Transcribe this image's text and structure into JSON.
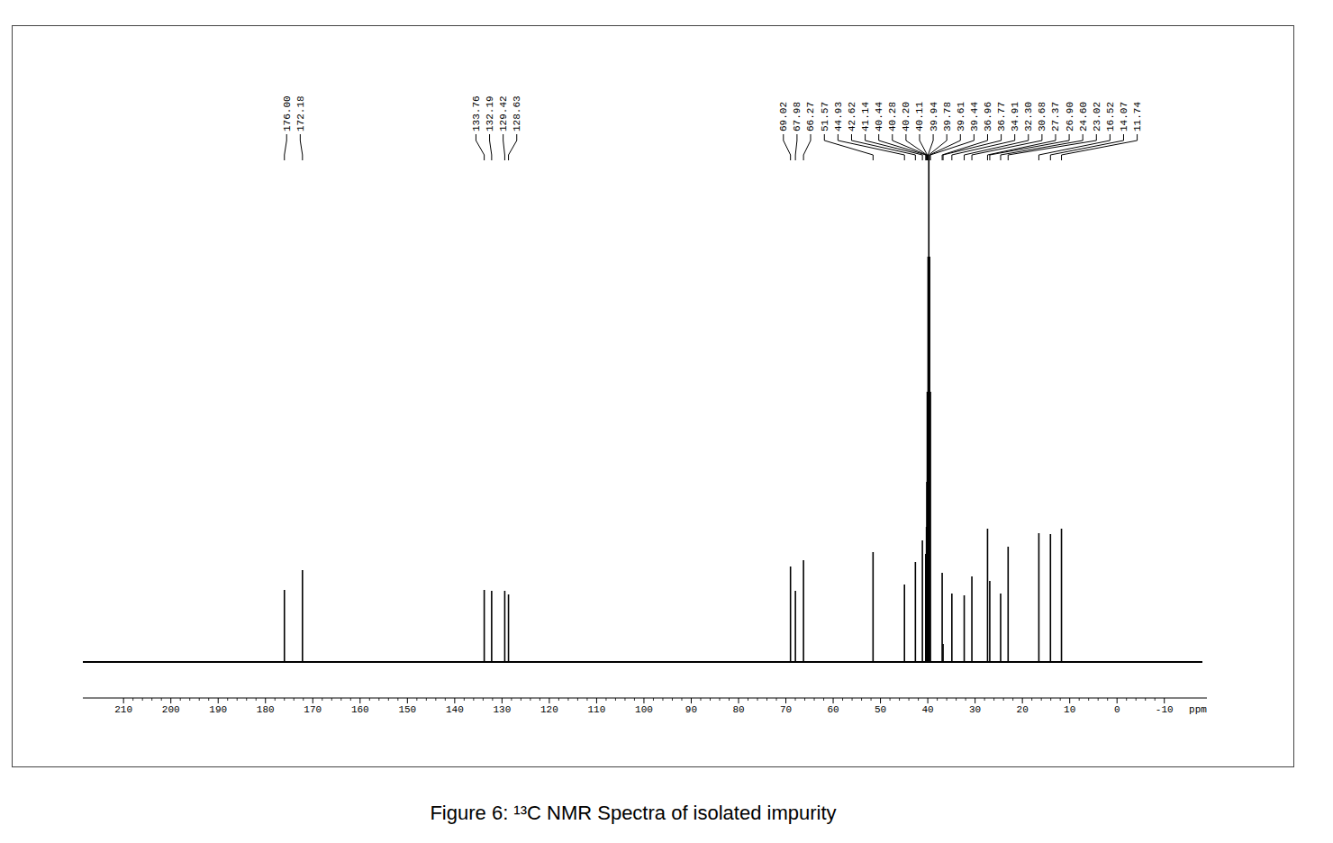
{
  "chart_data": {
    "type": "spectrum",
    "title": "Figure 6:  ¹³C NMR Spectra of isolated impurity",
    "x_label": "ppm",
    "x": [
      176.0,
      172.18,
      133.76,
      132.19,
      129.42,
      128.63,
      69.02,
      67.98,
      66.27,
      51.57,
      44.93,
      42.62,
      41.14,
      40.44,
      40.28,
      40.2,
      40.11,
      39.94,
      39.78,
      39.61,
      39.44,
      36.96,
      36.77,
      34.91,
      32.3,
      30.68,
      27.37,
      26.9,
      24.6,
      23.02,
      16.52,
      14.07,
      11.74
    ],
    "peak_labels": [
      "176.00",
      "172.18",
      "133.76",
      "132.19",
      "129.42",
      "128.63",
      "69.02",
      "67.98",
      "66.27",
      "51.57",
      "44.93",
      "42.62",
      "41.14",
      "40.44",
      "40.28",
      "40.20",
      "40.11",
      "39.94",
      "39.78",
      "39.61",
      "39.44",
      "36.96",
      "36.77",
      "34.91",
      "32.30",
      "30.68",
      "27.37",
      "26.90",
      "24.60",
      "23.02",
      "16.52",
      "14.07",
      "11.74"
    ],
    "values": [
      80,
      102,
      80,
      79,
      79,
      75,
      106,
      79,
      113,
      122,
      86,
      111,
      135,
      120,
      150,
      200,
      300,
      450,
      557,
      450,
      300,
      99,
      20,
      76,
      74,
      95,
      148,
      90,
      76,
      128,
      143,
      142,
      148
    ],
    "xlim": [
      218.6,
      -19.0
    ],
    "xticks": [
      210,
      200,
      190,
      180,
      170,
      160,
      150,
      140,
      130,
      120,
      110,
      100,
      90,
      80,
      70,
      60,
      50,
      40,
      30,
      20,
      10,
      0,
      -10
    ],
    "ylim": [
      0,
      557
    ],
    "tick_labels": "x",
    "color": "#000000"
  }
}
